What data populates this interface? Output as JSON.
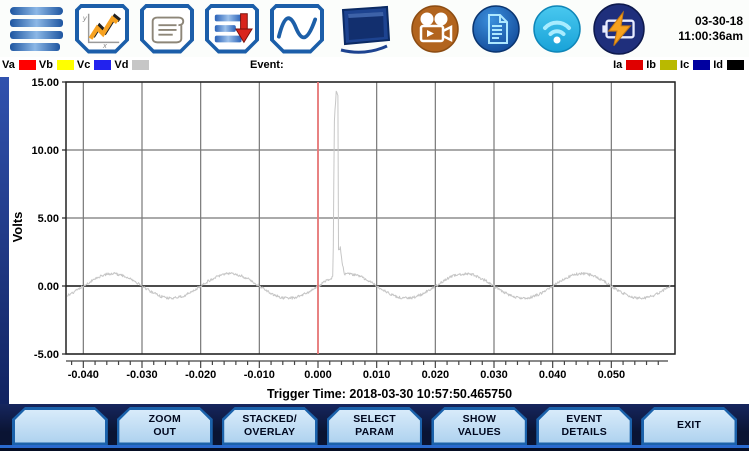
{
  "header": {
    "date": "03-30-18",
    "time": "11:00:36am",
    "toolbar_icons": [
      "dranetz-logo",
      "trend-graph-icon",
      "report-scroll-icon",
      "download-data-icon",
      "waveform-icon",
      "monitor-icon",
      "record-camera-icon",
      "document-icon",
      "wifi-icon",
      "battery-charging-icon"
    ]
  },
  "legend": {
    "event_label": "Event:",
    "voltage_channels": [
      {
        "label": "Va",
        "color": "#ff0000"
      },
      {
        "label": "Vb",
        "color": "#ffff00"
      },
      {
        "label": "Vc",
        "color": "#2222ee"
      },
      {
        "label": "Vd",
        "color": "#c6c6c6"
      }
    ],
    "current_channels": [
      {
        "label": "Ia",
        "color": "#e00000"
      },
      {
        "label": "Ib",
        "color": "#b9b900"
      },
      {
        "label": "Ic",
        "color": "#0000a0"
      },
      {
        "label": "Id",
        "color": "#000000"
      }
    ]
  },
  "chart_data": {
    "type": "line",
    "title": "",
    "xlabel": "",
    "ylabel": "Volts",
    "grid": true,
    "x_axis": {
      "unit": "seconds",
      "min": -0.0427,
      "max": 0.0605,
      "major_tick_step": 0.01,
      "minor_tick_step": 0.002,
      "tick_values": [
        -0.04,
        -0.03,
        -0.02,
        -0.01,
        0,
        0.01,
        0.02,
        0.03,
        0.04,
        0.05
      ],
      "tick_labels": [
        "-0.040",
        "-0.030",
        "-0.020",
        "-0.010",
        "0.000",
        "0.010",
        "0.020",
        "0.030",
        "0.040",
        "0.050"
      ]
    },
    "y_axis": {
      "min": -5,
      "max": 15,
      "tick_values": [
        15,
        10,
        5,
        0,
        -5
      ],
      "tick_labels": [
        "15.00",
        "10.00",
        "5.00",
        "0.00",
        "-5.00"
      ]
    },
    "cursor": {
      "time_s": 0.0,
      "color": "#e97777"
    },
    "series": [
      {
        "name": "Vd",
        "color": "#c6c6c6",
        "signal": {
          "type": "noisy_sine_with_transient",
          "amplitude_V": 0.9,
          "frequency_hz": 50,
          "noise_V": 0.1,
          "transient": {
            "start_s": 0.00255,
            "end_s": 0.0045,
            "peak_V": 13.5,
            "profile_t_v": [
              [
                0.00255,
                0
              ],
              [
                0.0028,
                11.5
              ],
              [
                0.0031,
                13.5
              ],
              [
                0.0034,
                13.2
              ],
              [
                0.00345,
                1.8
              ],
              [
                0.0038,
                2.0
              ],
              [
                0.0041,
                0.9
              ],
              [
                0.0045,
                0
              ]
            ]
          }
        }
      }
    ],
    "footer_label": "Trigger Time: 2018-03-30 10:57:50.465750"
  },
  "buttons": [
    {
      "name": "blank-button",
      "lines": []
    },
    {
      "name": "zoom-out-button",
      "lines": [
        "ZOOM",
        "OUT"
      ]
    },
    {
      "name": "stacked-overlay-button",
      "lines": [
        "STACKED/",
        "OVERLAY"
      ]
    },
    {
      "name": "select-param-button",
      "lines": [
        "SELECT",
        "PARAM"
      ]
    },
    {
      "name": "show-values-button",
      "lines": [
        "SHOW",
        "VALUES"
      ]
    },
    {
      "name": "event-details-button",
      "lines": [
        "EVENT",
        "DETAILS"
      ]
    },
    {
      "name": "exit-button",
      "lines": [
        "EXIT"
      ]
    }
  ]
}
